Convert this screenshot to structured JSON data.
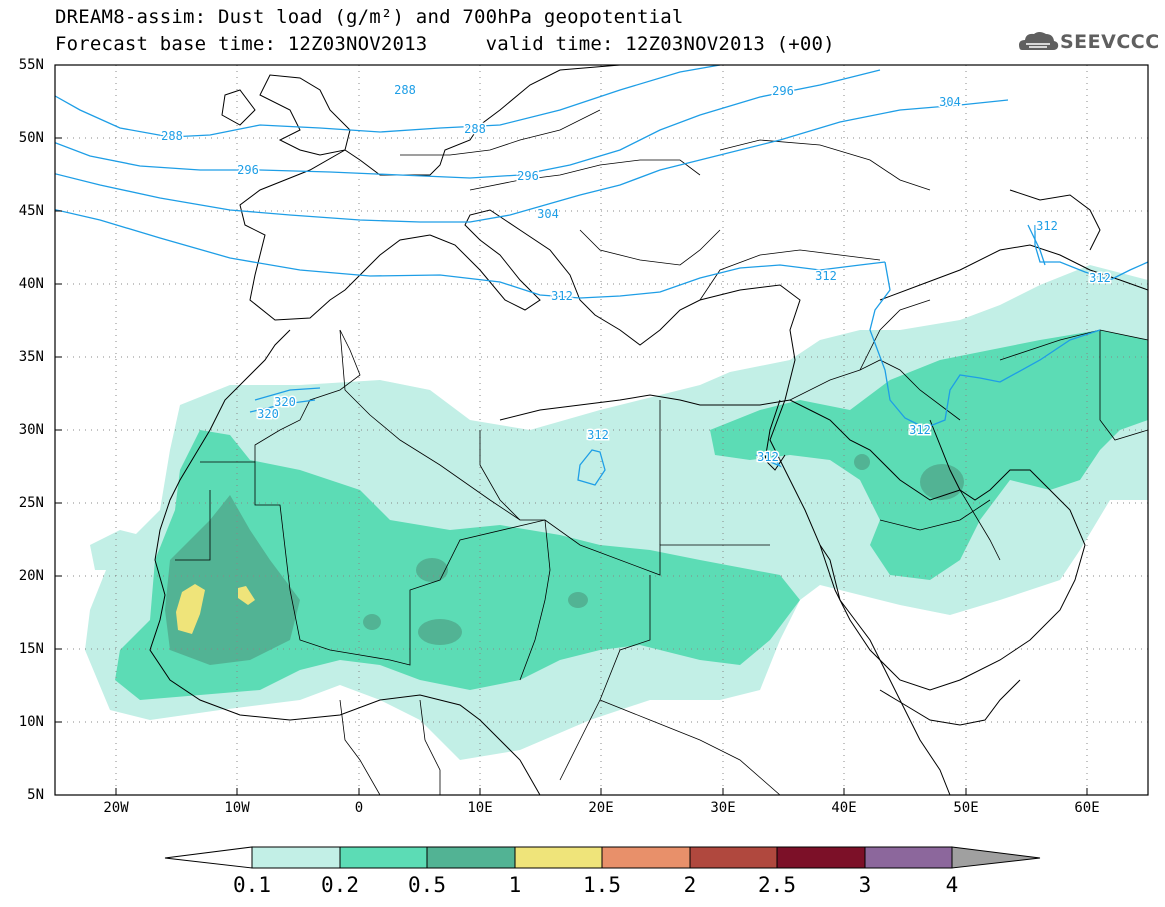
{
  "title": {
    "line1": "DREAM8-assim: Dust load (g/m²) and 700hPa geopotential",
    "line2": "Forecast base time: 12Z03NOV2013     valid time: 12Z03NOV2013 (+00)"
  },
  "logo": {
    "text": "SEEVCCC",
    "icon": "cloud-icon"
  },
  "map": {
    "lat_labels": [
      "55N",
      "50N",
      "45N",
      "40N",
      "35N",
      "30N",
      "25N",
      "20N",
      "15N",
      "10N",
      "5N"
    ],
    "lon_labels": [
      "20W",
      "10W",
      "0",
      "10E",
      "20E",
      "30E",
      "40E",
      "50E",
      "60E"
    ],
    "extent": {
      "lon": [
        -25,
        65
      ],
      "lat": [
        5,
        55
      ]
    },
    "grid": "dotted",
    "contour_labels": [
      "288",
      "288",
      "288",
      "296",
      "296",
      "296",
      "304",
      "304",
      "312",
      "312",
      "312",
      "312",
      "312",
      "312",
      "312",
      "320",
      "320"
    ]
  },
  "colorbar": {
    "labels": [
      "0.1",
      "0.2",
      "0.5",
      "1",
      "1.5",
      "2",
      "2.5",
      "3",
      "4"
    ],
    "colors": [
      "#c2efe6",
      "#5cdcb5",
      "#52b394",
      "#efe47a",
      "#e8906a",
      "#b0483e",
      "#7c1028",
      "#8c679c",
      "#a0a0a0"
    ]
  }
}
